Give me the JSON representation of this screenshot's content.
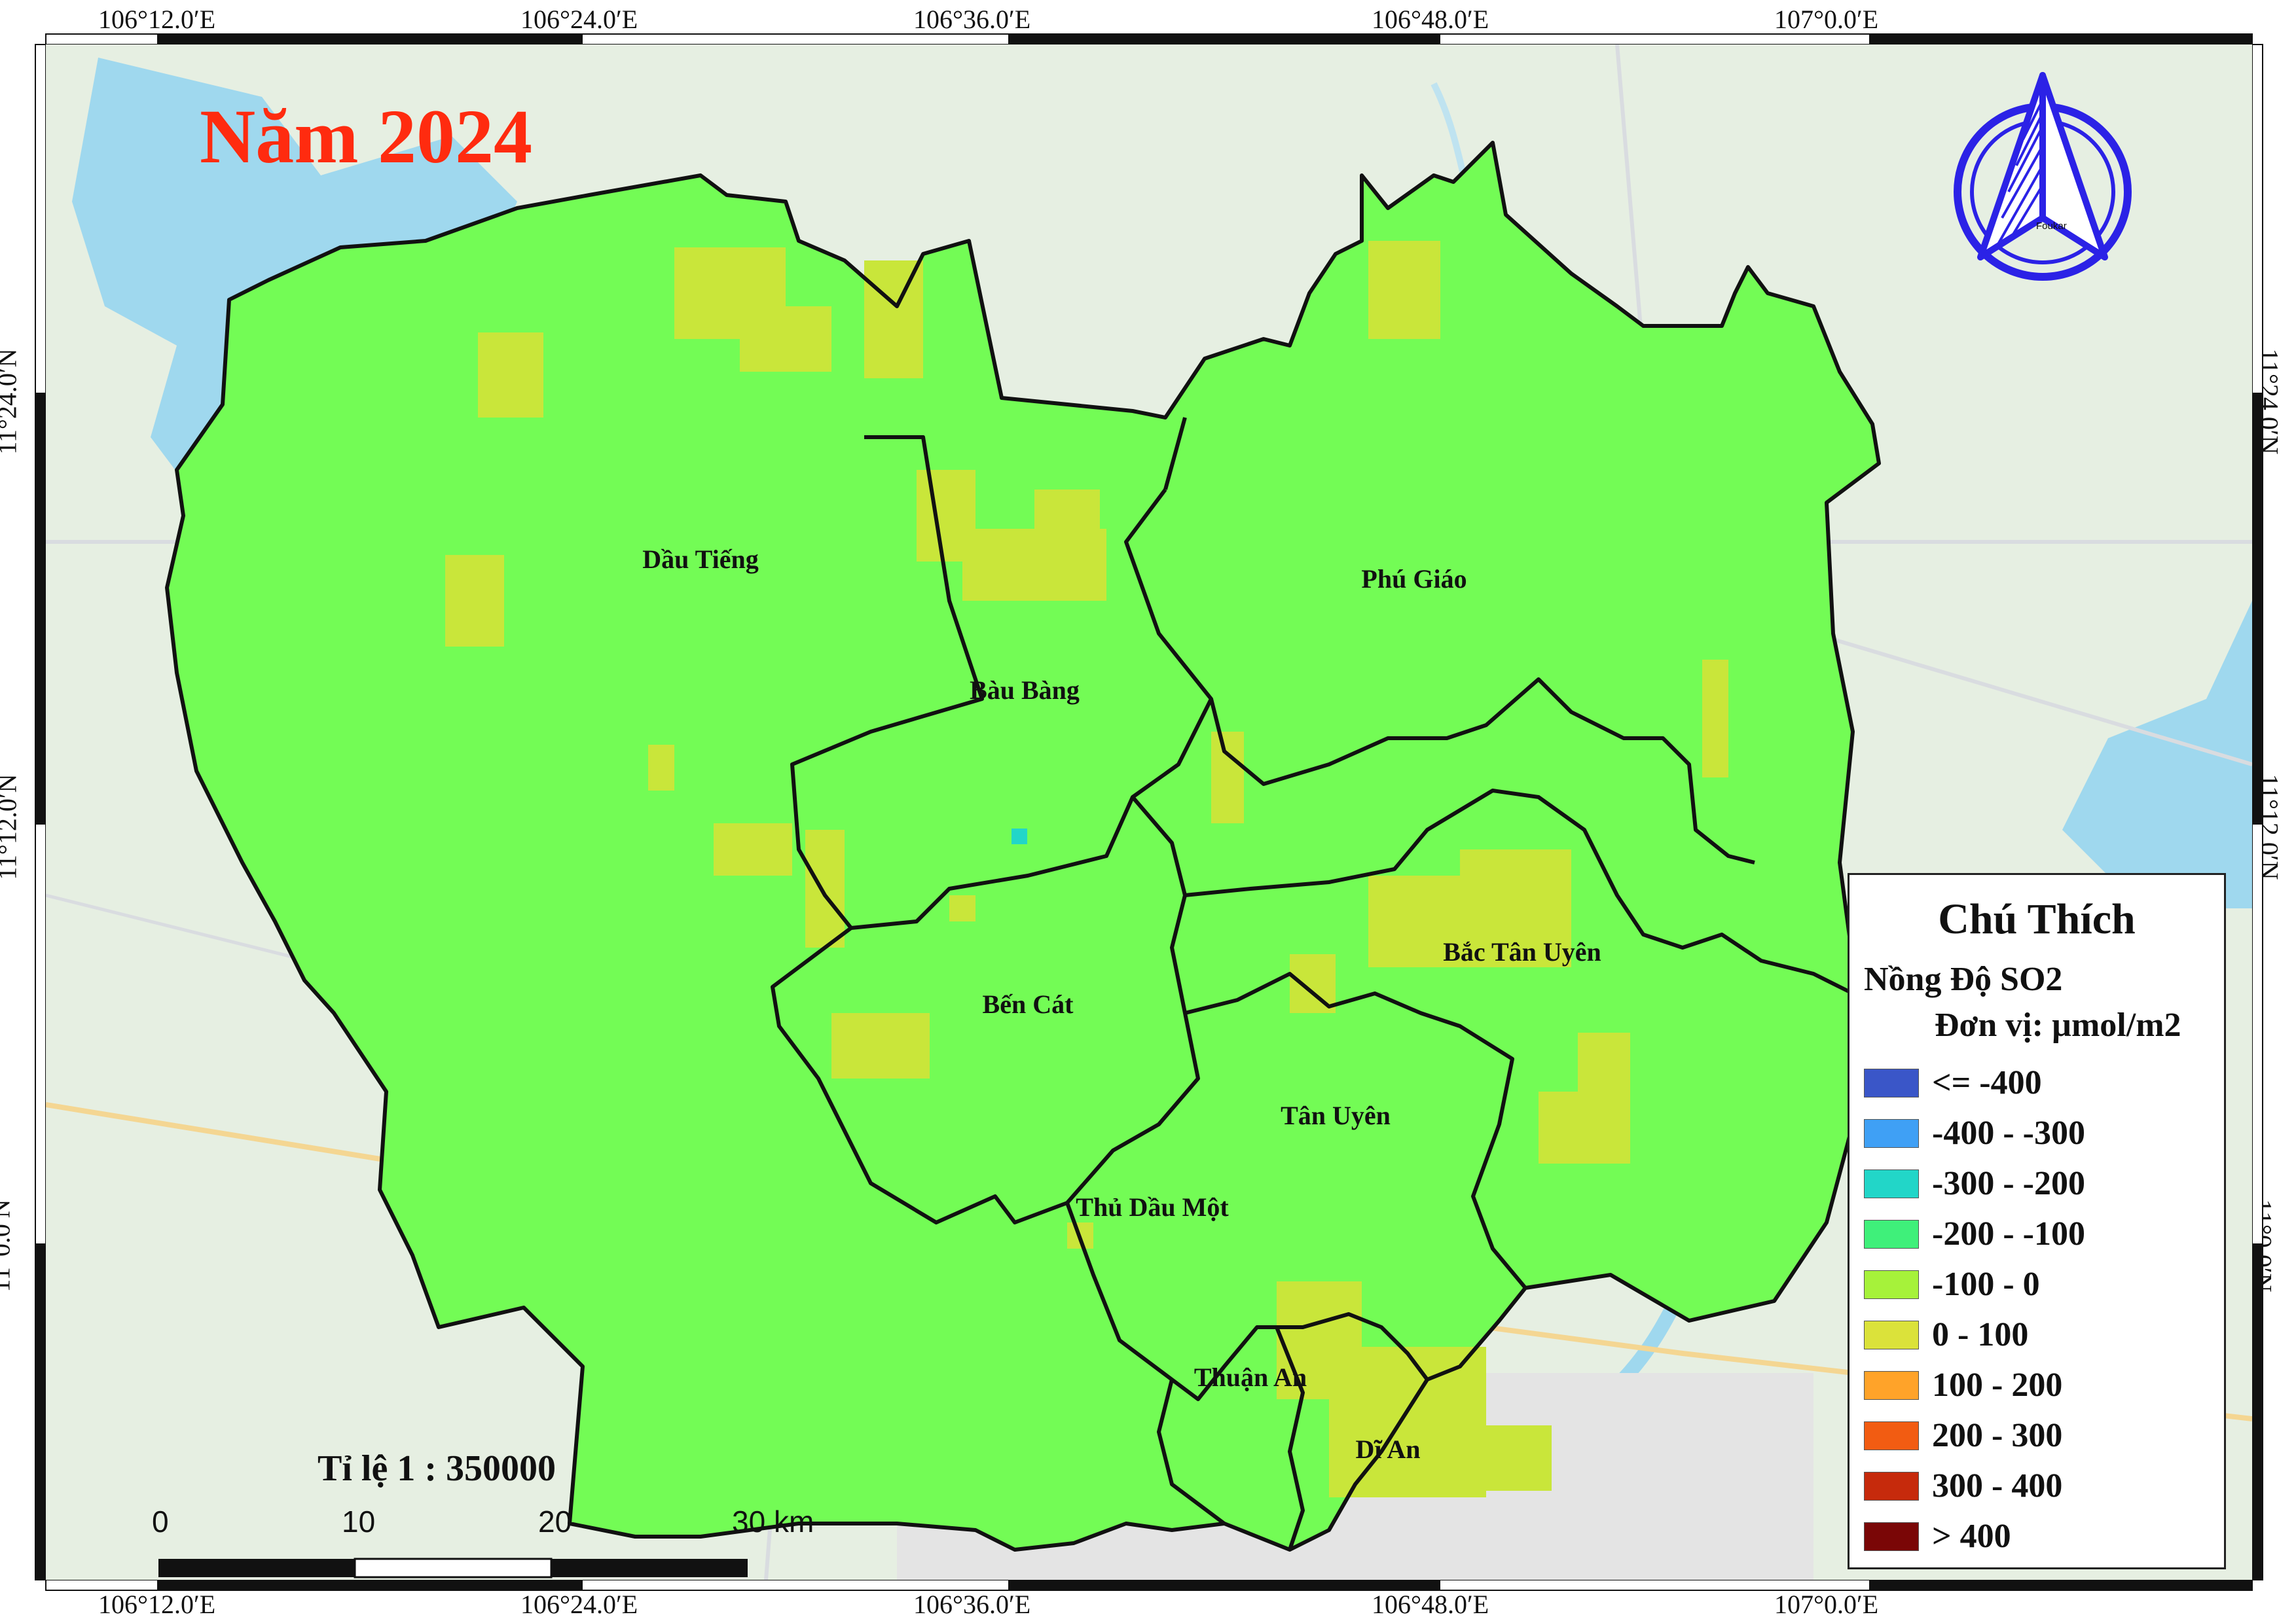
{
  "map": {
    "title": "Năm 2024",
    "scale_text": "Tỉ lệ 1 : 350000",
    "scale_labels": [
      "0",
      "10",
      "20",
      "30 km"
    ],
    "north_arrow_label": "Foukar",
    "top_coords": [
      "106°12.0′E",
      "106°24.0′E",
      "106°36.0′E",
      "106°48.0′E",
      "107°0.0′E"
    ],
    "bottom_coords": [
      "106°12.0′E",
      "106°24.0′E",
      "106°36.0′E",
      "106°48.0′E",
      "107°0.0′E"
    ],
    "left_coords": [
      "11°24.0′N",
      "11°12.0′N",
      "11°0.0′N"
    ],
    "right_coords": [
      "11°24.0′N",
      "11°12.0′N",
      "11°0.0′N"
    ],
    "districts": [
      "Dầu Tiếng",
      "Bàu Bàng",
      "Phú Giáo",
      "Bắc Tân Uyên",
      "Bến Cát",
      "Tân Uyên",
      "Thủ Dầu Một",
      "Thuận An",
      "Dĩ An"
    ],
    "colors": {
      "base_fill": "#73fc55",
      "hotspot_fill": "#c9e63a",
      "boundary": "#111111",
      "title_color": "#ff2b0f",
      "arrow_color": "#2b22e6"
    }
  },
  "legend": {
    "title": "Chú Thích",
    "subtitle": "Nồng Độ SO2",
    "unit": "Đơn vị: µmol/m2",
    "items": [
      {
        "label": "<= -400",
        "color": "#3a56c8"
      },
      {
        "label": "-400 - -300",
        "color": "#3fa0f5"
      },
      {
        "label": "-300 - -200",
        "color": "#22d6c8"
      },
      {
        "label": "-200 - -100",
        "color": "#3ff07a"
      },
      {
        "label": "-100 - 0",
        "color": "#a6f23a"
      },
      {
        "label": "0 - 100",
        "color": "#dbe23a"
      },
      {
        "label": "100 - 200",
        "color": "#ffa329"
      },
      {
        "label": "200 - 300",
        "color": "#f25c12"
      },
      {
        "label": "300 - 400",
        "color": "#c62a0c"
      },
      {
        "label": "> 400",
        "color": "#7a0606"
      }
    ]
  }
}
